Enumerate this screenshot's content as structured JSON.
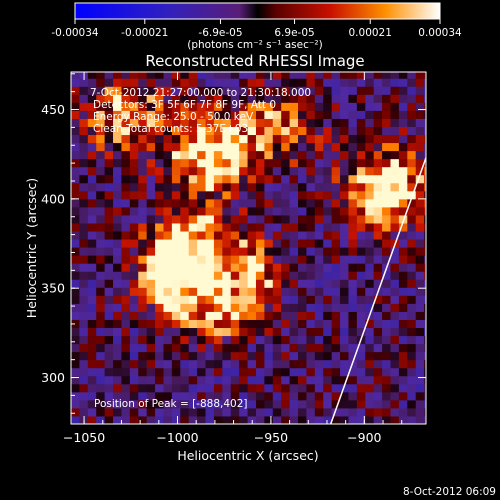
{
  "colorbar": {
    "tick_labels": [
      "-0.00034",
      "-0.00021",
      "-6.9e-05",
      "6.9e-05",
      "0.00021",
      "0.00034"
    ],
    "tick_values": [
      -0.00034,
      -0.00021,
      -6.9e-05,
      6.9e-05,
      0.00021,
      0.00034
    ],
    "range": [
      -0.00034,
      0.00034
    ],
    "units_label": "(photons cm⁻² s⁻¹ asec⁻²)"
  },
  "chart_data": {
    "type": "heatmap",
    "title": "Reconstructed RHESSI Image",
    "xlabel": "Heliocentric X (arcsec)",
    "ylabel": "Heliocentric Y (arcsec)",
    "xlim": [
      -1057,
      -867
    ],
    "ylim": [
      274,
      471
    ],
    "x_ticks": [
      -1050,
      -1000,
      -950,
      -900
    ],
    "x_tick_labels": [
      "−1050",
      "−1000",
      "−950",
      "−900"
    ],
    "y_ticks": [
      300,
      350,
      400,
      450
    ],
    "y_tick_labels": [
      "300",
      "350",
      "400",
      "450"
    ],
    "annotations": [
      "7-Oct-2012 21:27:00.000 to 21:30:18.000",
      "Detectors: 3F 5F 6F 7F 8F 9F, Att 0",
      "Energy Range: 25.0 - 50.0 keV",
      "Clean      Total counts: 5.37E+03"
    ],
    "peak_label": "Position of Peak = [-888,402]",
    "peak_position": [
      -888,
      402
    ],
    "limb_points": [
      [
        -918,
        274
      ],
      [
        -867,
        423
      ]
    ],
    "bright_sources": [
      {
        "x": -1000,
        "y": 362,
        "intensity": 1.0
      },
      {
        "x": -985,
        "y": 422,
        "intensity": 0.9
      },
      {
        "x": -890,
        "y": 403,
        "intensity": 0.95
      },
      {
        "x": -975,
        "y": 348,
        "intensity": 0.6
      },
      {
        "x": -1030,
        "y": 445,
        "intensity": 0.65
      },
      {
        "x": -950,
        "y": 440,
        "intensity": 0.55
      }
    ]
  },
  "footer": {
    "date_stamp": "8-Oct-2012 06:09"
  }
}
